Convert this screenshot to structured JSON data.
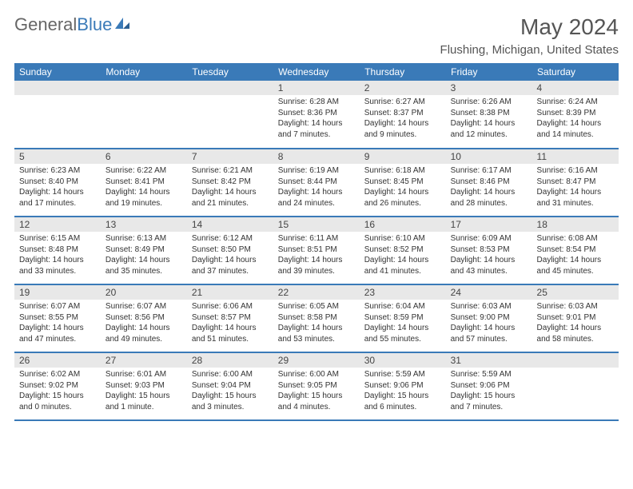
{
  "brand": {
    "part1": "General",
    "part2": "Blue"
  },
  "title": "May 2024",
  "location": "Flushing, Michigan, United States",
  "colors": {
    "header_bg": "#3a7ab8",
    "daynum_bg": "#e8e8e8",
    "text": "#333333",
    "title": "#555555"
  },
  "dayNames": [
    "Sunday",
    "Monday",
    "Tuesday",
    "Wednesday",
    "Thursday",
    "Friday",
    "Saturday"
  ],
  "weeks": [
    [
      {
        "n": "",
        "sr": "",
        "ss": "",
        "dl": ""
      },
      {
        "n": "",
        "sr": "",
        "ss": "",
        "dl": ""
      },
      {
        "n": "",
        "sr": "",
        "ss": "",
        "dl": ""
      },
      {
        "n": "1",
        "sr": "Sunrise: 6:28 AM",
        "ss": "Sunset: 8:36 PM",
        "dl": "Daylight: 14 hours and 7 minutes."
      },
      {
        "n": "2",
        "sr": "Sunrise: 6:27 AM",
        "ss": "Sunset: 8:37 PM",
        "dl": "Daylight: 14 hours and 9 minutes."
      },
      {
        "n": "3",
        "sr": "Sunrise: 6:26 AM",
        "ss": "Sunset: 8:38 PM",
        "dl": "Daylight: 14 hours and 12 minutes."
      },
      {
        "n": "4",
        "sr": "Sunrise: 6:24 AM",
        "ss": "Sunset: 8:39 PM",
        "dl": "Daylight: 14 hours and 14 minutes."
      }
    ],
    [
      {
        "n": "5",
        "sr": "Sunrise: 6:23 AM",
        "ss": "Sunset: 8:40 PM",
        "dl": "Daylight: 14 hours and 17 minutes."
      },
      {
        "n": "6",
        "sr": "Sunrise: 6:22 AM",
        "ss": "Sunset: 8:41 PM",
        "dl": "Daylight: 14 hours and 19 minutes."
      },
      {
        "n": "7",
        "sr": "Sunrise: 6:21 AM",
        "ss": "Sunset: 8:42 PM",
        "dl": "Daylight: 14 hours and 21 minutes."
      },
      {
        "n": "8",
        "sr": "Sunrise: 6:19 AM",
        "ss": "Sunset: 8:44 PM",
        "dl": "Daylight: 14 hours and 24 minutes."
      },
      {
        "n": "9",
        "sr": "Sunrise: 6:18 AM",
        "ss": "Sunset: 8:45 PM",
        "dl": "Daylight: 14 hours and 26 minutes."
      },
      {
        "n": "10",
        "sr": "Sunrise: 6:17 AM",
        "ss": "Sunset: 8:46 PM",
        "dl": "Daylight: 14 hours and 28 minutes."
      },
      {
        "n": "11",
        "sr": "Sunrise: 6:16 AM",
        "ss": "Sunset: 8:47 PM",
        "dl": "Daylight: 14 hours and 31 minutes."
      }
    ],
    [
      {
        "n": "12",
        "sr": "Sunrise: 6:15 AM",
        "ss": "Sunset: 8:48 PM",
        "dl": "Daylight: 14 hours and 33 minutes."
      },
      {
        "n": "13",
        "sr": "Sunrise: 6:13 AM",
        "ss": "Sunset: 8:49 PM",
        "dl": "Daylight: 14 hours and 35 minutes."
      },
      {
        "n": "14",
        "sr": "Sunrise: 6:12 AM",
        "ss": "Sunset: 8:50 PM",
        "dl": "Daylight: 14 hours and 37 minutes."
      },
      {
        "n": "15",
        "sr": "Sunrise: 6:11 AM",
        "ss": "Sunset: 8:51 PM",
        "dl": "Daylight: 14 hours and 39 minutes."
      },
      {
        "n": "16",
        "sr": "Sunrise: 6:10 AM",
        "ss": "Sunset: 8:52 PM",
        "dl": "Daylight: 14 hours and 41 minutes."
      },
      {
        "n": "17",
        "sr": "Sunrise: 6:09 AM",
        "ss": "Sunset: 8:53 PM",
        "dl": "Daylight: 14 hours and 43 minutes."
      },
      {
        "n": "18",
        "sr": "Sunrise: 6:08 AM",
        "ss": "Sunset: 8:54 PM",
        "dl": "Daylight: 14 hours and 45 minutes."
      }
    ],
    [
      {
        "n": "19",
        "sr": "Sunrise: 6:07 AM",
        "ss": "Sunset: 8:55 PM",
        "dl": "Daylight: 14 hours and 47 minutes."
      },
      {
        "n": "20",
        "sr": "Sunrise: 6:07 AM",
        "ss": "Sunset: 8:56 PM",
        "dl": "Daylight: 14 hours and 49 minutes."
      },
      {
        "n": "21",
        "sr": "Sunrise: 6:06 AM",
        "ss": "Sunset: 8:57 PM",
        "dl": "Daylight: 14 hours and 51 minutes."
      },
      {
        "n": "22",
        "sr": "Sunrise: 6:05 AM",
        "ss": "Sunset: 8:58 PM",
        "dl": "Daylight: 14 hours and 53 minutes."
      },
      {
        "n": "23",
        "sr": "Sunrise: 6:04 AM",
        "ss": "Sunset: 8:59 PM",
        "dl": "Daylight: 14 hours and 55 minutes."
      },
      {
        "n": "24",
        "sr": "Sunrise: 6:03 AM",
        "ss": "Sunset: 9:00 PM",
        "dl": "Daylight: 14 hours and 57 minutes."
      },
      {
        "n": "25",
        "sr": "Sunrise: 6:03 AM",
        "ss": "Sunset: 9:01 PM",
        "dl": "Daylight: 14 hours and 58 minutes."
      }
    ],
    [
      {
        "n": "26",
        "sr": "Sunrise: 6:02 AM",
        "ss": "Sunset: 9:02 PM",
        "dl": "Daylight: 15 hours and 0 minutes."
      },
      {
        "n": "27",
        "sr": "Sunrise: 6:01 AM",
        "ss": "Sunset: 9:03 PM",
        "dl": "Daylight: 15 hours and 1 minute."
      },
      {
        "n": "28",
        "sr": "Sunrise: 6:00 AM",
        "ss": "Sunset: 9:04 PM",
        "dl": "Daylight: 15 hours and 3 minutes."
      },
      {
        "n": "29",
        "sr": "Sunrise: 6:00 AM",
        "ss": "Sunset: 9:05 PM",
        "dl": "Daylight: 15 hours and 4 minutes."
      },
      {
        "n": "30",
        "sr": "Sunrise: 5:59 AM",
        "ss": "Sunset: 9:06 PM",
        "dl": "Daylight: 15 hours and 6 minutes."
      },
      {
        "n": "31",
        "sr": "Sunrise: 5:59 AM",
        "ss": "Sunset: 9:06 PM",
        "dl": "Daylight: 15 hours and 7 minutes."
      },
      {
        "n": "",
        "sr": "",
        "ss": "",
        "dl": ""
      }
    ]
  ]
}
